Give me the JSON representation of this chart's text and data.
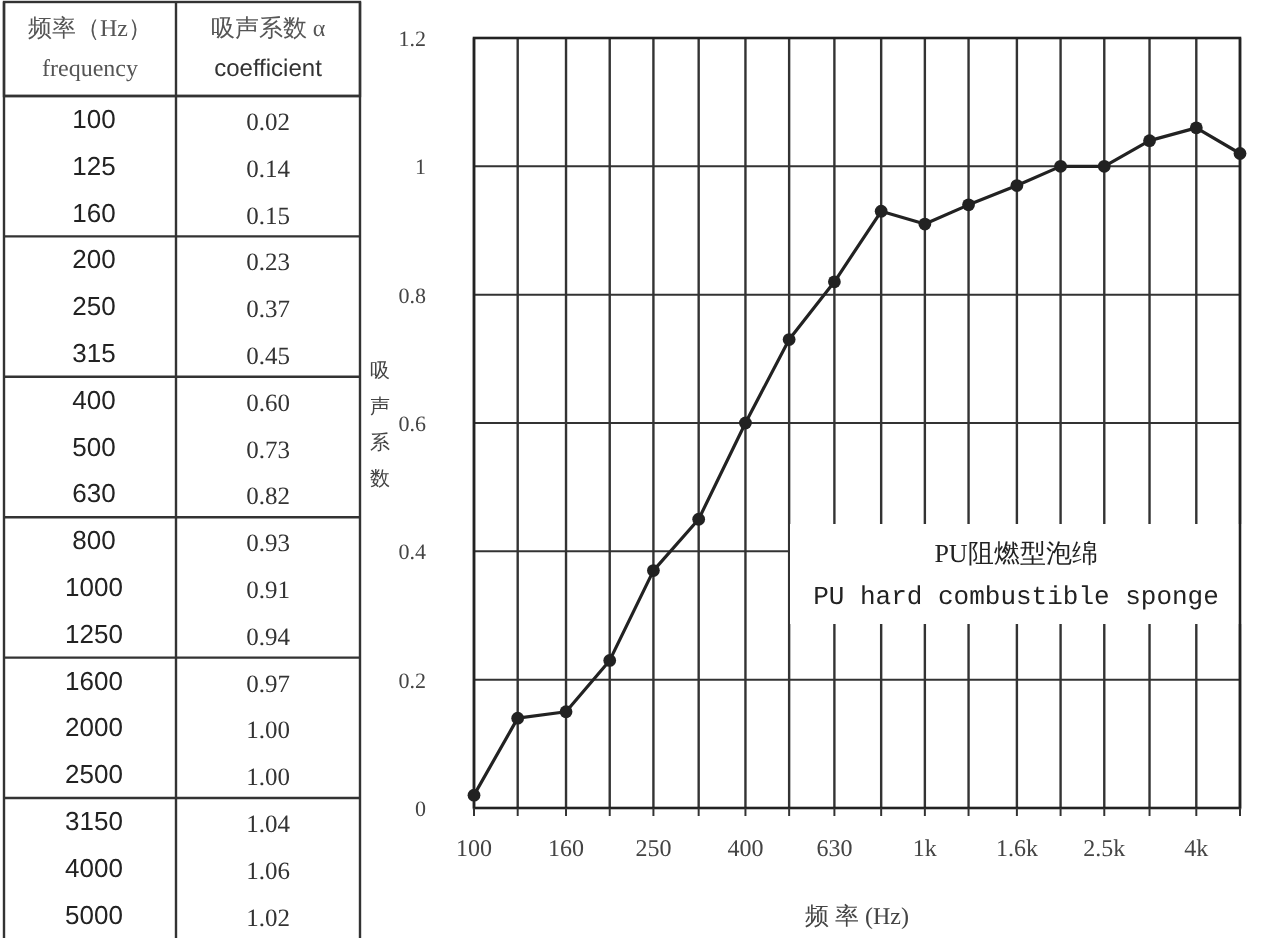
{
  "chart_data": [
    {
      "type": "other",
      "categories": [
        "100",
        "125",
        "160",
        "200",
        "250",
        "315",
        "400",
        "500",
        "630",
        "800",
        "1000",
        "1250",
        "1600",
        "2000",
        "2500",
        "3150",
        "4000",
        "5000"
      ],
      "value_labels": [
        "0.02",
        "0.14",
        "0.15",
        "0.23",
        "0.37",
        "0.45",
        "0.60",
        "0.73",
        "0.82",
        "0.93",
        "0.91",
        "0.94",
        "0.97",
        "1.00",
        "1.00",
        "1.04",
        "1.06",
        "1.02"
      ],
      "annotations": [
        "频率（Hz）",
        "frequency",
        "吸声系数 α",
        "coefficient"
      ]
    },
    {
      "type": "line",
      "xlabel": "频 率 (Hz)",
      "ylabel": "吸声系数",
      "x": [
        100,
        125,
        160,
        200,
        250,
        315,
        400,
        500,
        630,
        800,
        1000,
        1250,
        1600,
        2000,
        2500,
        3150,
        4000,
        5000
      ],
      "series": [
        {
          "color": "#222222",
          "values": [
            0.02,
            0.14,
            0.15,
            0.23,
            0.37,
            0.45,
            0.6,
            0.73,
            0.82,
            0.93,
            0.91,
            0.94,
            0.97,
            1.0,
            1.0,
            1.04,
            1.06,
            1.02
          ]
        }
      ],
      "log": "x",
      "xlim": [
        100,
        5000
      ],
      "xticks": [
        100,
        {
          "value": 125,
          "label": null
        },
        160,
        {
          "value": 200,
          "label": null
        },
        250,
        {
          "value": 315,
          "label": null
        },
        400,
        {
          "value": 500,
          "label": null
        },
        630,
        {
          "value": 800,
          "label": null
        },
        {
          "value": 1000,
          "label": "1k"
        },
        {
          "value": 1250,
          "label": null
        },
        {
          "value": 1600,
          "label": "1.6k"
        },
        {
          "value": 2000,
          "label": null
        },
        {
          "value": 2500,
          "label": "2.5k"
        },
        {
          "value": 3150,
          "label": null
        },
        {
          "value": 4000,
          "label": "4k"
        },
        {
          "value": 5000,
          "label": null
        }
      ],
      "ylim": [
        0,
        1.2
      ],
      "yticks": [
        0,
        0.2,
        0.4,
        0.6,
        0.8,
        1,
        1.2
      ],
      "grid": true,
      "marker": "circle",
      "line_style": "solid",
      "annotations": [
        "PU阻燃型泡绵",
        "PU hard combustible sponge"
      ]
    }
  ]
}
